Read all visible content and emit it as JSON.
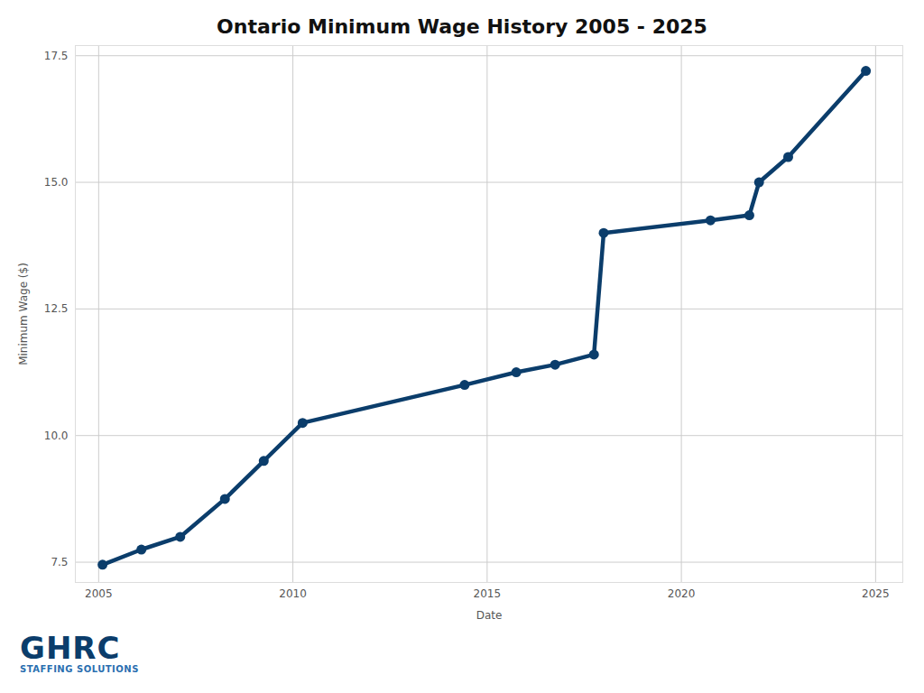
{
  "chart_data": {
    "type": "line",
    "title": "Ontario Minimum Wage History 2005 - 2025",
    "x_label": "Date",
    "y_label": "Minimum Wage ($)",
    "logo_text": "GHRC",
    "logo_subtext": "STAFFING SOLUTIONS",
    "x": [
      2005.1,
      2006.1,
      2007.1,
      2008.25,
      2009.25,
      2010.25,
      2014.42,
      2015.75,
      2016.75,
      2017.75,
      2018.0,
      2020.75,
      2021.75,
      2022.0,
      2022.75,
      2024.75
    ],
    "values": [
      7.45,
      7.75,
      8.0,
      8.75,
      9.5,
      10.25,
      11.0,
      11.25,
      11.4,
      11.6,
      14.0,
      14.25,
      14.35,
      15.0,
      15.5,
      17.2
    ],
    "color": "#0b3d6b",
    "marker": "circle",
    "line_style": "solid",
    "xlim": [
      2004.4,
      2025.7
    ],
    "xticks": [
      2005,
      2010,
      2015,
      2020,
      2025
    ],
    "ylim": [
      7.1,
      17.7
    ],
    "yticks": [
      7.5,
      {
        "value": 10,
        "label": "10.0"
      },
      12.5,
      {
        "value": 15,
        "label": "15.0"
      },
      17.5
    ],
    "grid": true
  }
}
